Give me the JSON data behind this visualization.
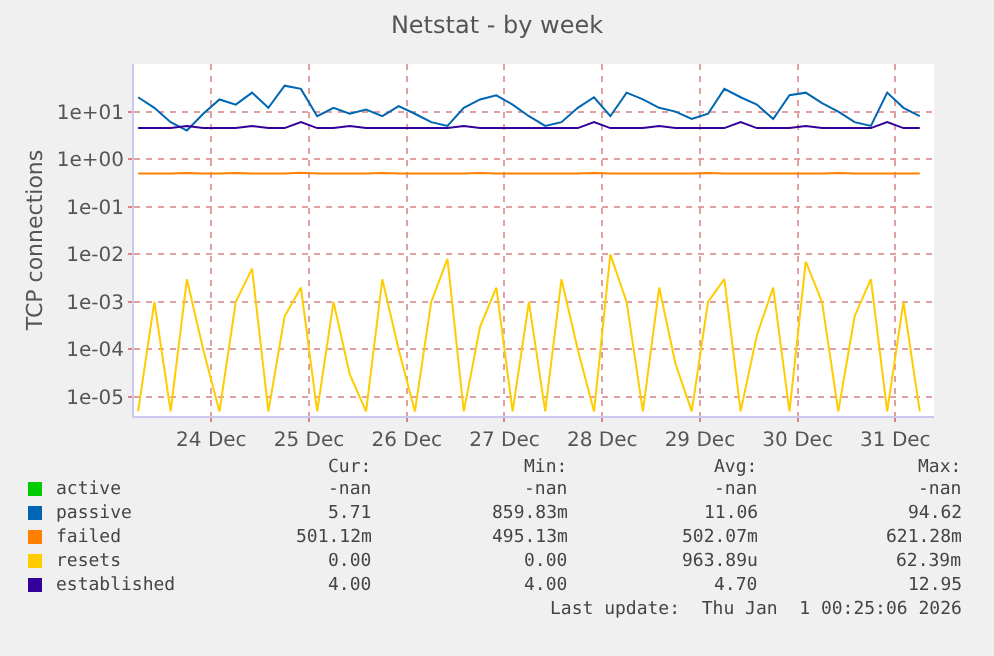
{
  "chart_data": {
    "type": "line",
    "title": "Netstat - by week",
    "ylabel": "TCP connections",
    "x": [
      "--12-23T06:00",
      "--12-23T10:00",
      "--12-23T14:00",
      "--12-23T18:00",
      "--12-23T22:00",
      "--12-24T02:00",
      "--12-24T06:00",
      "--12-24T10:00",
      "--12-24T14:00",
      "--12-24T18:00",
      "--12-24T22:00",
      "--12-25T02:00",
      "--12-25T06:00",
      "--12-25T10:00",
      "--12-25T14:00",
      "--12-25T18:00",
      "--12-25T22:00",
      "--12-26T02:00",
      "--12-26T06:00",
      "--12-26T10:00",
      "--12-26T14:00",
      "--12-26T18:00",
      "--12-26T22:00",
      "--12-27T02:00",
      "--12-27T06:00",
      "--12-27T10:00",
      "--12-27T14:00",
      "--12-27T18:00",
      "--12-27T22:00",
      "--12-28T02:00",
      "--12-28T06:00",
      "--12-28T10:00",
      "--12-28T14:00",
      "--12-28T18:00",
      "--12-28T22:00",
      "--12-29T02:00",
      "--12-29T06:00",
      "--12-29T10:00",
      "--12-29T14:00",
      "--12-29T18:00",
      "--12-29T22:00",
      "--12-30T02:00",
      "--12-30T06:00",
      "--12-30T10:00",
      "--12-30T14:00",
      "--12-30T18:00",
      "--12-30T22:00",
      "--12-31T02:00",
      "--12-31T06:00"
    ],
    "series": [
      {
        "name": "active",
        "color": "#00cc00",
        "values": [
          null,
          null,
          null,
          null,
          null,
          null,
          null,
          null,
          null,
          null,
          null,
          null,
          null,
          null,
          null,
          null,
          null,
          null,
          null,
          null,
          null,
          null,
          null,
          null,
          null,
          null,
          null,
          null,
          null,
          null,
          null,
          null,
          null,
          null,
          null,
          null,
          null,
          null,
          null,
          null,
          null,
          null,
          null,
          null,
          null,
          null,
          null,
          null,
          null
        ]
      },
      {
        "name": "passive",
        "color": "#0066b3",
        "values": [
          20,
          12,
          6,
          4,
          9,
          18,
          14,
          25,
          12,
          35,
          30,
          8,
          12,
          9,
          11,
          8,
          13,
          9,
          6,
          5,
          12,
          18,
          22,
          14,
          8,
          5,
          6,
          12,
          20,
          8,
          25,
          18,
          12,
          10,
          7,
          9,
          30,
          20,
          14,
          7,
          22,
          25,
          15,
          10,
          6,
          5,
          25,
          12,
          8
        ]
      },
      {
        "name": "failed",
        "color": "#ff8000",
        "values": [
          0.5,
          0.5,
          0.5,
          0.51,
          0.5,
          0.5,
          0.51,
          0.5,
          0.5,
          0.5,
          0.52,
          0.5,
          0.5,
          0.5,
          0.5,
          0.51,
          0.5,
          0.5,
          0.5,
          0.5,
          0.5,
          0.51,
          0.5,
          0.5,
          0.5,
          0.5,
          0.5,
          0.5,
          0.51,
          0.5,
          0.5,
          0.5,
          0.5,
          0.5,
          0.5,
          0.51,
          0.5,
          0.5,
          0.5,
          0.5,
          0.5,
          0.5,
          0.5,
          0.51,
          0.5,
          0.5,
          0.5,
          0.5,
          0.5
        ]
      },
      {
        "name": "resets",
        "color": "#ffcc00",
        "values": [
          5e-06,
          0.001,
          5e-06,
          0.003,
          0.0001,
          5e-06,
          0.001,
          0.005,
          5e-06,
          0.0005,
          0.002,
          5e-06,
          0.001,
          3e-05,
          5e-06,
          0.003,
          0.0001,
          5e-06,
          0.001,
          0.008,
          5e-06,
          0.0003,
          0.002,
          5e-06,
          0.001,
          5e-06,
          0.003,
          0.0001,
          5e-06,
          0.01,
          0.001,
          5e-06,
          0.002,
          5e-05,
          5e-06,
          0.001,
          0.003,
          5e-06,
          0.0002,
          0.002,
          5e-06,
          0.007,
          0.001,
          5e-06,
          0.0005,
          0.003,
          5e-06,
          0.001,
          5e-06
        ]
      },
      {
        "name": "established",
        "color": "#330099",
        "values": [
          4.5,
          4.5,
          4.5,
          5,
          4.5,
          4.5,
          4.5,
          5,
          4.5,
          4.5,
          6,
          4.5,
          4.5,
          5,
          4.5,
          4.5,
          4.5,
          4.5,
          4.5,
          4.5,
          5,
          4.5,
          4.5,
          4.5,
          4.5,
          4.5,
          4.5,
          4.5,
          6,
          4.5,
          4.5,
          4.5,
          5,
          4.5,
          4.5,
          4.5,
          4.5,
          6,
          4.5,
          4.5,
          4.5,
          5,
          4.5,
          4.5,
          4.5,
          4.5,
          6,
          4.5,
          4.5
        ]
      }
    ],
    "xlim": [
      "--12-23T05:00",
      "--12-31T09:30"
    ],
    "xticks": [
      {
        "value": "--12-24",
        "label": "24 Dec"
      },
      {
        "value": "--12-25",
        "label": "25 Dec"
      },
      {
        "value": "--12-26",
        "label": "26 Dec"
      },
      {
        "value": "--12-27",
        "label": "27 Dec"
      },
      {
        "value": "--12-28",
        "label": "28 Dec"
      },
      {
        "value": "--12-29",
        "label": "29 Dec"
      },
      {
        "value": "--12-30",
        "label": "30 Dec"
      },
      {
        "value": "--12-31",
        "label": "31 Dec"
      }
    ],
    "ylim": [
      4e-06,
      100
    ],
    "log": true,
    "yticks": [
      {
        "value": 1e-05,
        "label": "1e-05"
      },
      {
        "value": 0.0001,
        "label": "1e-04"
      },
      {
        "value": 0.001,
        "label": "1e-03"
      },
      {
        "value": 0.01,
        "label": "1e-02"
      },
      {
        "value": 0.1,
        "label": "1e-01"
      },
      {
        "value": 1,
        "label": "1e+00"
      },
      {
        "value": 10,
        "label": "1e+01"
      }
    ],
    "grid": true,
    "legend": "bottom left",
    "marker": "none",
    "line_style": "solid",
    "annotations": [
      "Cur:",
      "Min:",
      "Avg:",
      "Max:",
      "-nan",
      "-nan",
      "-nan",
      "-nan",
      "5.71",
      "859.83m",
      "11.06",
      "94.62",
      "501.12m",
      "495.13m",
      "502.07m",
      "621.28m",
      "0.00",
      "0.00",
      "963.89u",
      "62.39m",
      "4.00",
      "4.00",
      "4.70",
      "12.95",
      "Last update:  Thu Jan  1 00:25:06 2026"
    ]
  }
}
